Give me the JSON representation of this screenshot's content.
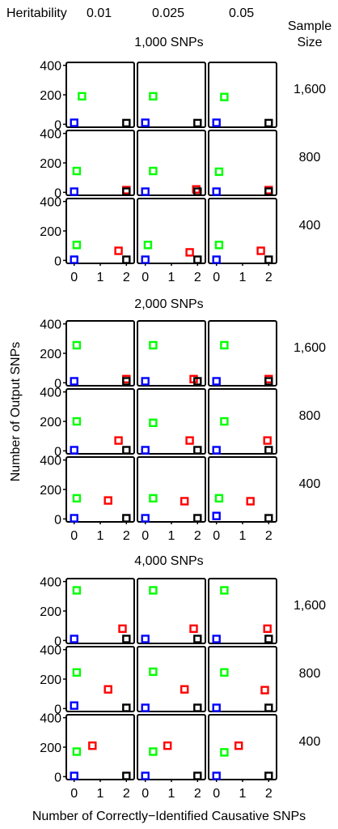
{
  "header": {
    "heritability_label": "Heritability",
    "heritability_values": [
      "0.01",
      "0.025",
      "0.05"
    ],
    "sample_label_line1": "Sample",
    "sample_label_line2": "Size"
  },
  "xlabel": "Number of Correctly−Identified Causative SNPs",
  "ylabel": "Number of Output SNPs",
  "colors": {
    "0": "#0000ff",
    "1": "#00ff00",
    "2": "#ff0000",
    "3": "#000000"
  },
  "chart_data": {
    "type": "scatter",
    "x_ticks": [
      0,
      1,
      2
    ],
    "y_ticks": [
      0,
      200,
      400
    ],
    "xlim": [
      -0.3,
      2.3
    ],
    "ylim": [
      -20,
      420
    ],
    "columns": [
      "0.01",
      "0.025",
      "0.05"
    ],
    "sections": [
      {
        "title": "1,000 SNPs",
        "rows": [
          {
            "sample_size": "1,600",
            "panels": [
              [
                [
                  0,
                  10,
                  0
                ],
                [
                  0.3,
                  190,
                  1
                ],
                [
                  2,
                  8,
                  3
                ]
              ],
              [
                [
                  0,
                  10,
                  0
                ],
                [
                  0.3,
                  190,
                  1
                ],
                [
                  2,
                  8,
                  3
                ]
              ],
              [
                [
                  0,
                  10,
                  0
                ],
                [
                  0.3,
                  185,
                  1
                ],
                [
                  2,
                  8,
                  3
                ]
              ]
            ]
          },
          {
            "sample_size": "800",
            "panels": [
              [
                [
                  0,
                  5,
                  0
                ],
                [
                  0.1,
                  145,
                  1
                ],
                [
                  2,
                  15,
                  2
                ],
                [
                  2,
                  5,
                  3
                ]
              ],
              [
                [
                  0,
                  5,
                  0
                ],
                [
                  0.3,
                  145,
                  1
                ],
                [
                  1.95,
                  20,
                  2
                ],
                [
                  2,
                  5,
                  3
                ]
              ],
              [
                [
                  0,
                  5,
                  0
                ],
                [
                  0.1,
                  140,
                  1
                ],
                [
                  2,
                  15,
                  2
                ],
                [
                  2,
                  5,
                  3
                ]
              ]
            ]
          },
          {
            "sample_size": "400",
            "panels": [
              [
                [
                  0,
                  5,
                  0
                ],
                [
                  0.1,
                  105,
                  1
                ],
                [
                  1.7,
                  65,
                  2
                ],
                [
                  2,
                  5,
                  3
                ]
              ],
              [
                [
                  0,
                  5,
                  0
                ],
                [
                  0.1,
                  105,
                  1
                ],
                [
                  1.7,
                  55,
                  2
                ],
                [
                  2,
                  5,
                  3
                ]
              ],
              [
                [
                  0,
                  5,
                  0
                ],
                [
                  0.1,
                  105,
                  1
                ],
                [
                  1.7,
                  65,
                  2
                ],
                [
                  2,
                  5,
                  3
                ]
              ]
            ]
          }
        ]
      },
      {
        "title": "2,000 SNPs",
        "rows": [
          {
            "sample_size": "1,600",
            "panels": [
              [
                [
                  0,
                  10,
                  0
                ],
                [
                  0.1,
                  255,
                  1
                ],
                [
                  2,
                  25,
                  2
                ],
                [
                  2,
                  10,
                  3
                ]
              ],
              [
                [
                  0,
                  10,
                  0
                ],
                [
                  0.3,
                  255,
                  1
                ],
                [
                  1.85,
                  25,
                  2
                ],
                [
                  2,
                  10,
                  3
                ]
              ],
              [
                [
                  0,
                  10,
                  0
                ],
                [
                  0.3,
                  255,
                  1
                ],
                [
                  2,
                  25,
                  2
                ],
                [
                  2,
                  10,
                  3
                ]
              ]
            ]
          },
          {
            "sample_size": "800",
            "panels": [
              [
                [
                  0,
                  5,
                  0
                ],
                [
                  0.1,
                  200,
                  1
                ],
                [
                  1.7,
                  70,
                  2
                ],
                [
                  2,
                  5,
                  3
                ]
              ],
              [
                [
                  0,
                  5,
                  0
                ],
                [
                  0.3,
                  190,
                  1
                ],
                [
                  1.7,
                  70,
                  2
                ],
                [
                  2,
                  5,
                  3
                ]
              ],
              [
                [
                  0,
                  5,
                  0
                ],
                [
                  0.3,
                  200,
                  1
                ],
                [
                  1.95,
                  70,
                  2
                ],
                [
                  2,
                  5,
                  3
                ]
              ]
            ]
          },
          {
            "sample_size": "400",
            "panels": [
              [
                [
                  0,
                  5,
                  0
                ],
                [
                  0.1,
                  140,
                  1
                ],
                [
                  1.3,
                  125,
                  2
                ],
                [
                  2,
                  5,
                  3
                ]
              ],
              [
                [
                  0,
                  5,
                  0
                ],
                [
                  0.3,
                  140,
                  1
                ],
                [
                  1.5,
                  120,
                  2
                ],
                [
                  2,
                  5,
                  3
                ]
              ],
              [
                [
                  0,
                  20,
                  0
                ],
                [
                  0.1,
                  140,
                  1
                ],
                [
                  1.3,
                  120,
                  2
                ],
                [
                  2,
                  5,
                  3
                ]
              ]
            ]
          }
        ]
      },
      {
        "title": "4,000 SNPs",
        "rows": [
          {
            "sample_size": "1,600",
            "panels": [
              [
                [
                  0,
                  10,
                  0
                ],
                [
                  0.1,
                  340,
                  1
                ],
                [
                  1.85,
                  80,
                  2
                ],
                [
                  2,
                  10,
                  3
                ]
              ],
              [
                [
                  0,
                  10,
                  0
                ],
                [
                  0.3,
                  340,
                  1
                ],
                [
                  1.85,
                  80,
                  2
                ],
                [
                  2,
                  10,
                  3
                ]
              ],
              [
                [
                  0,
                  10,
                  0
                ],
                [
                  0.3,
                  340,
                  1
                ],
                [
                  1.95,
                  80,
                  2
                ],
                [
                  2,
                  10,
                  3
                ]
              ]
            ]
          },
          {
            "sample_size": "800",
            "panels": [
              [
                [
                  0,
                  20,
                  0
                ],
                [
                  0.1,
                  245,
                  1
                ],
                [
                  1.3,
                  130,
                  2
                ],
                [
                  2,
                  5,
                  3
                ]
              ],
              [
                [
                  0,
                  5,
                  0
                ],
                [
                  0.3,
                  250,
                  1
                ],
                [
                  1.5,
                  130,
                  2
                ],
                [
                  2,
                  5,
                  3
                ]
              ],
              [
                [
                  0,
                  5,
                  0
                ],
                [
                  0.3,
                  245,
                  1
                ],
                [
                  1.85,
                  125,
                  2
                ],
                [
                  2,
                  5,
                  3
                ]
              ]
            ]
          },
          {
            "sample_size": "400",
            "panels": [
              [
                [
                  0,
                  5,
                  0
                ],
                [
                  0.1,
                  170,
                  1
                ],
                [
                  0.7,
                  210,
                  2
                ],
                [
                  2,
                  5,
                  3
                ]
              ],
              [
                [
                  0,
                  5,
                  0
                ],
                [
                  0.3,
                  170,
                  1
                ],
                [
                  0.85,
                  210,
                  2
                ],
                [
                  2,
                  5,
                  3
                ]
              ],
              [
                [
                  0,
                  5,
                  0
                ],
                [
                  0.3,
                  165,
                  1
                ],
                [
                  0.85,
                  210,
                  2
                ],
                [
                  2,
                  5,
                  3
                ]
              ]
            ]
          }
        ]
      }
    ]
  }
}
